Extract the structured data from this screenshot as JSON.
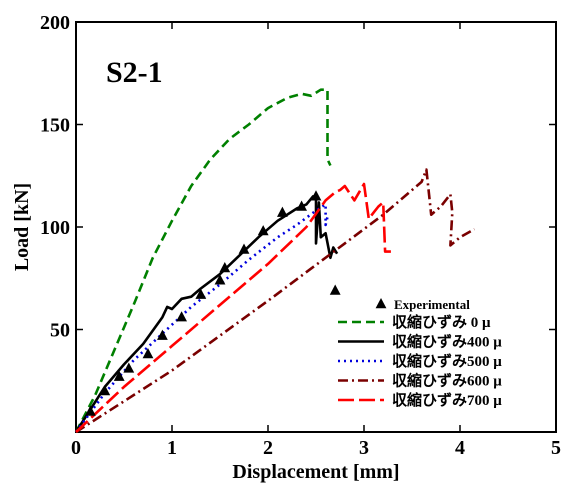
{
  "chart_data": {
    "type": "line",
    "panel_label": "S2-1",
    "xlabel": "Displacement [mm]",
    "ylabel": "Load [kN]",
    "xlim": [
      0,
      5
    ],
    "ylim": [
      0,
      200
    ],
    "xticks": [
      0,
      1,
      2,
      3,
      4,
      5
    ],
    "yticks": [
      50,
      100,
      150,
      200
    ],
    "grid": false,
    "legend_position": "bottom-right",
    "experimental": {
      "name": "Experimental",
      "marker": "triangle",
      "color": "#000000",
      "points": [
        [
          0.15,
          10
        ],
        [
          0.3,
          20
        ],
        [
          0.45,
          27
        ],
        [
          0.55,
          31
        ],
        [
          0.75,
          38
        ],
        [
          0.9,
          47
        ],
        [
          1.1,
          56
        ],
        [
          1.3,
          67
        ],
        [
          1.5,
          74
        ],
        [
          1.55,
          80
        ],
        [
          1.75,
          89
        ],
        [
          1.95,
          98
        ],
        [
          2.15,
          107
        ],
        [
          2.35,
          110
        ],
        [
          2.5,
          115
        ],
        [
          2.7,
          69
        ]
      ]
    },
    "series": [
      {
        "name": "収縮ひずみ  0 μ",
        "color": "#008000",
        "dash": "9,5",
        "points": [
          [
            0,
            0
          ],
          [
            0.2,
            18
          ],
          [
            0.4,
            40
          ],
          [
            0.6,
            62
          ],
          [
            0.8,
            85
          ],
          [
            1.0,
            103
          ],
          [
            1.2,
            120
          ],
          [
            1.4,
            133
          ],
          [
            1.6,
            143
          ],
          [
            1.8,
            150
          ],
          [
            2.0,
            158
          ],
          [
            2.2,
            163
          ],
          [
            2.35,
            165
          ],
          [
            2.45,
            164
          ],
          [
            2.55,
            167
          ],
          [
            2.62,
            167
          ],
          [
            2.62,
            133
          ],
          [
            2.65,
            130
          ]
        ]
      },
      {
        "name": "収縮ひずみ400 μ",
        "color": "#000000",
        "dash": "",
        "points": [
          [
            0,
            0
          ],
          [
            0.3,
            22
          ],
          [
            0.5,
            33
          ],
          [
            0.7,
            43
          ],
          [
            0.9,
            56
          ],
          [
            0.95,
            61
          ],
          [
            1.0,
            60
          ],
          [
            1.1,
            65
          ],
          [
            1.2,
            66
          ],
          [
            1.3,
            70
          ],
          [
            1.5,
            77
          ],
          [
            1.7,
            86
          ],
          [
            1.9,
            95
          ],
          [
            2.1,
            103
          ],
          [
            2.3,
            109
          ],
          [
            2.4,
            111
          ],
          [
            2.47,
            115
          ],
          [
            2.5,
            114
          ],
          [
            2.5,
            92
          ],
          [
            2.53,
            112
          ],
          [
            2.55,
            95
          ],
          [
            2.6,
            97
          ],
          [
            2.65,
            85
          ],
          [
            2.68,
            90
          ],
          [
            2.72,
            87
          ]
        ]
      },
      {
        "name": "収縮ひずみ500 μ",
        "color": "#0000dd",
        "dash": "2,4",
        "points": [
          [
            0,
            0
          ],
          [
            0.3,
            19
          ],
          [
            0.6,
            35
          ],
          [
            0.9,
            48
          ],
          [
            1.2,
            61
          ],
          [
            1.5,
            72
          ],
          [
            1.8,
            84
          ],
          [
            2.1,
            95
          ],
          [
            2.3,
            101
          ],
          [
            2.5,
            108
          ],
          [
            2.6,
            111
          ],
          [
            2.6,
            101
          ],
          [
            2.62,
            105
          ]
        ]
      },
      {
        "name": "収縮ひずみ600 μ",
        "color": "#7a0000",
        "dash": "10,4,2,4",
        "points": [
          [
            0,
            0
          ],
          [
            0.5,
            15
          ],
          [
            1.0,
            30
          ],
          [
            1.5,
            47
          ],
          [
            2.0,
            64
          ],
          [
            2.4,
            78
          ],
          [
            2.8,
            92
          ],
          [
            3.2,
            106
          ],
          [
            3.6,
            122
          ],
          [
            3.65,
            128
          ],
          [
            3.7,
            106
          ],
          [
            3.8,
            110
          ],
          [
            3.9,
            116
          ],
          [
            3.92,
            107
          ],
          [
            3.9,
            91
          ],
          [
            4.0,
            95
          ],
          [
            4.15,
            99
          ]
        ]
      },
      {
        "name": "収縮ひずみ700 μ",
        "color": "#ff0000",
        "dash": "16,5",
        "points": [
          [
            0,
            0
          ],
          [
            0.5,
            22
          ],
          [
            1.0,
            42
          ],
          [
            1.5,
            62
          ],
          [
            2.0,
            82
          ],
          [
            2.4,
            100
          ],
          [
            2.6,
            113
          ],
          [
            2.7,
            117
          ],
          [
            2.75,
            118
          ],
          [
            2.8,
            120
          ],
          [
            2.9,
            113
          ],
          [
            2.95,
            117
          ],
          [
            3.0,
            121
          ],
          [
            3.05,
            104
          ],
          [
            3.1,
            107
          ],
          [
            3.15,
            110
          ],
          [
            3.2,
            112
          ],
          [
            3.22,
            88
          ],
          [
            3.28,
            88
          ]
        ]
      }
    ]
  }
}
